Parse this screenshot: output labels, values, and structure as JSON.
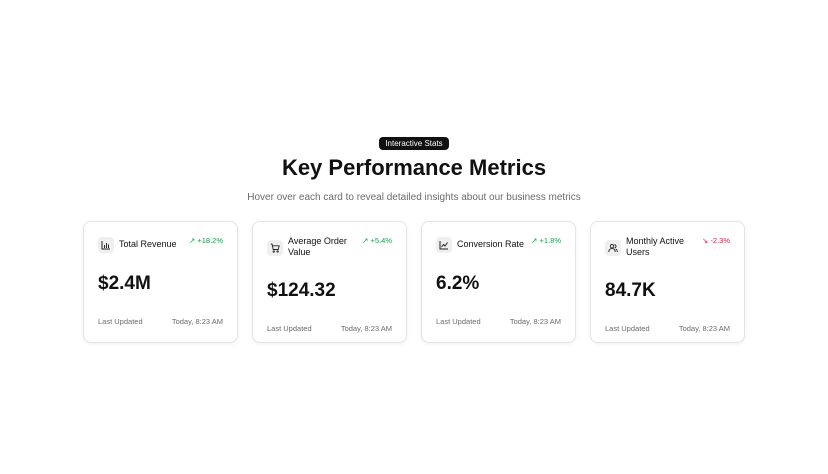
{
  "header": {
    "badge": "Interactive Stats",
    "title": "Key Performance Metrics",
    "subtitle": "Hover over each card to reveal detailed insights about our business metrics"
  },
  "cards": [
    {
      "icon": "bar-chart-icon",
      "label": "Total Revenue",
      "delta": "↗ +18.2%",
      "trend": "up",
      "value": "$2.4M",
      "updated_label": "Last Updated",
      "updated_time": "Today, 8:23 AM"
    },
    {
      "icon": "shopping-cart-icon",
      "label": "Average Order Value",
      "delta": "↗ +5.4%",
      "trend": "up",
      "value": "$124.32",
      "updated_label": "Last Updated",
      "updated_time": "Today, 8:23 AM"
    },
    {
      "icon": "line-chart-icon",
      "label": "Conversion Rate",
      "delta": "↗ +1.8%",
      "trend": "up",
      "value": "6.2%",
      "updated_label": "Last Updated",
      "updated_time": "Today, 8:23 AM"
    },
    {
      "icon": "users-icon",
      "label": "Monthly Active Users",
      "delta": "↘ -2.3%",
      "trend": "down",
      "value": "84.7K",
      "updated_label": "Last Updated",
      "updated_time": "Today, 8:23 AM"
    }
  ],
  "colors": {
    "positive": "#16a34a",
    "negative": "#e11d48",
    "badge_bg": "#111111"
  }
}
